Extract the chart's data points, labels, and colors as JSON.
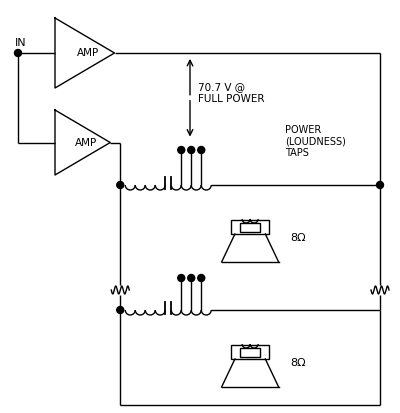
{
  "bg_color": "#ffffff",
  "line_color": "#000000",
  "lw": 1.0,
  "figsize": [
    4.0,
    4.13
  ],
  "dpi": 100,
  "label_in": "IN",
  "label_amp": "AMP",
  "label_voltage": "70.7 V @\nFULL POWER",
  "label_power": "POWER\n(LOUDNESS)\nTAPS",
  "label_ohm": "8Ω"
}
